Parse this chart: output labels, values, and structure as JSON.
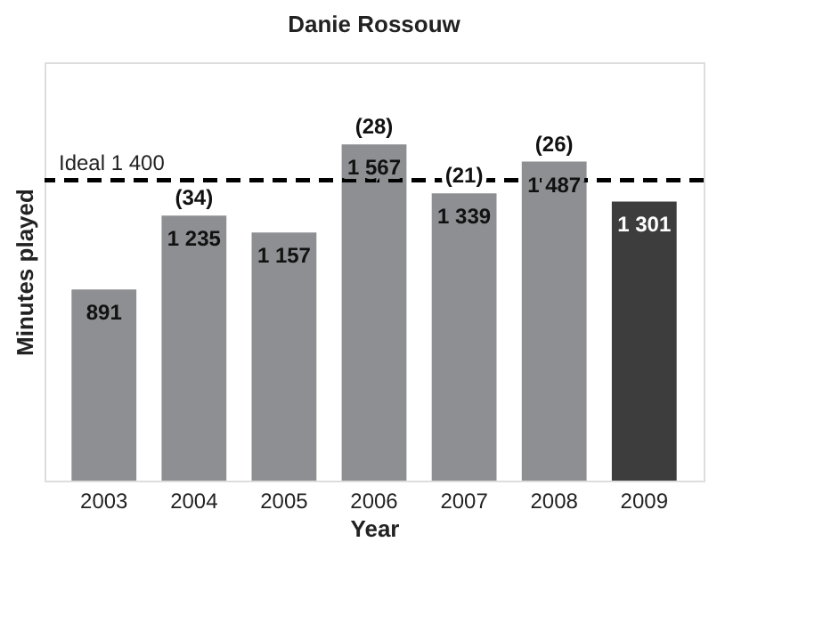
{
  "chart_data": {
    "type": "bar",
    "title": "Danie Rossouw",
    "xlabel": "Year",
    "ylabel": "Minutes played",
    "categories": [
      "2003",
      "2004",
      "2005",
      "2006",
      "2007",
      "2008",
      "2009"
    ],
    "values": [
      891,
      1235,
      1157,
      1567,
      1339,
      1487,
      1301
    ],
    "value_labels": [
      "891",
      "1 235",
      "1 157",
      "1 567",
      "1 339",
      "1 487",
      "1 301"
    ],
    "colors": [
      "#8e8f93",
      "#8e8f93",
      "#8e8f93",
      "#8e8f93",
      "#8e8f93",
      "#8e8f93",
      "#3d3d3d"
    ],
    "ylim": [
      0,
      1950
    ],
    "tick_labels": "x",
    "grid": false,
    "ref_lines": [
      {
        "axis": "y",
        "value": 1400,
        "label": "Ideal 1 400",
        "color": "#000000",
        "line_style": "dashed"
      }
    ],
    "annotations": [
      {
        "text": "(34)",
        "x": "2004",
        "y": 1235
      },
      {
        "text": "(28)",
        "x": "2006",
        "y": 1567
      },
      {
        "text": "(21)",
        "x": "2007",
        "y": 1339
      },
      {
        "text": "(26)",
        "x": "2008",
        "y": 1487
      }
    ]
  }
}
